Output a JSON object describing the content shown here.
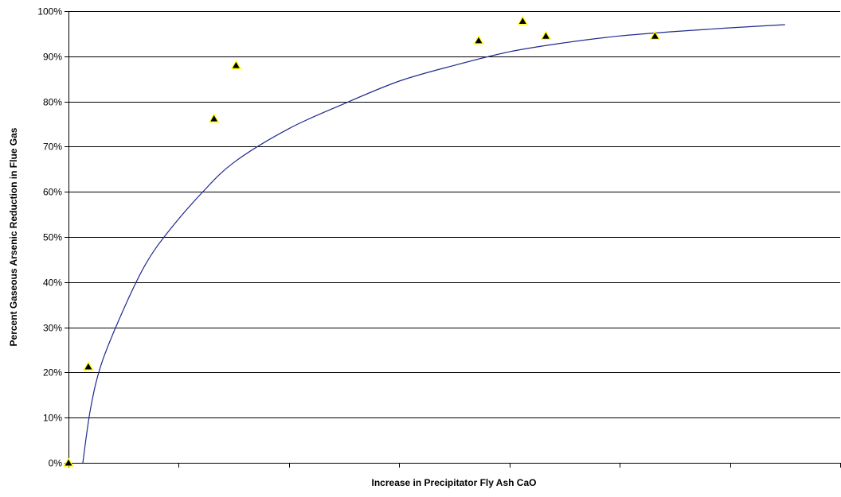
{
  "chart_data": {
    "type": "scatter",
    "title": "",
    "xlabel": "Increase in Precipitator Fly Ash CaO",
    "ylabel": "Percent Gaseous Arsenic Reduction in Flue Gas",
    "x_tick_labels_shown": false,
    "x_ticks": [
      0,
      1,
      2,
      3,
      4,
      5,
      6,
      7
    ],
    "xlim": [
      0,
      7
    ],
    "ylim": [
      0,
      100
    ],
    "y_ticks": [
      0,
      10,
      20,
      30,
      40,
      50,
      60,
      70,
      80,
      90,
      100
    ],
    "y_tick_labels": [
      "0%",
      "10%",
      "20%",
      "30%",
      "40%",
      "50%",
      "60%",
      "70%",
      "80%",
      "90%",
      "100%"
    ],
    "grid": "horizontal",
    "legend": "none",
    "series": [
      {
        "type": "scatter",
        "marker": "triangle",
        "color": "#000000",
        "marker_edge_color": "#ffff00",
        "points": [
          {
            "x": 0.0,
            "y": 0.0
          },
          {
            "x": 0.18,
            "y": 21.3
          },
          {
            "x": 1.32,
            "y": 76.2
          },
          {
            "x": 1.52,
            "y": 88.0
          },
          {
            "x": 3.72,
            "y": 93.5
          },
          {
            "x": 4.12,
            "y": 97.8
          },
          {
            "x": 4.33,
            "y": 94.5
          },
          {
            "x": 5.32,
            "y": 94.5
          }
        ]
      },
      {
        "type": "line",
        "color": "#1f2a8c",
        "points": [
          {
            "x": 0.13,
            "y": 0.0
          },
          {
            "x": 0.2,
            "y": 12.0
          },
          {
            "x": 0.3,
            "y": 22.0
          },
          {
            "x": 0.5,
            "y": 34.0
          },
          {
            "x": 0.7,
            "y": 44.0
          },
          {
            "x": 0.9,
            "y": 51.0
          },
          {
            "x": 1.2,
            "y": 59.5
          },
          {
            "x": 1.5,
            "y": 66.5
          },
          {
            "x": 2.0,
            "y": 74.0
          },
          {
            "x": 2.5,
            "y": 79.5
          },
          {
            "x": 3.0,
            "y": 84.5
          },
          {
            "x": 3.5,
            "y": 88.0
          },
          {
            "x": 4.0,
            "y": 91.0
          },
          {
            "x": 4.5,
            "y": 93.0
          },
          {
            "x": 5.0,
            "y": 94.5
          },
          {
            "x": 5.5,
            "y": 95.5
          },
          {
            "x": 6.0,
            "y": 96.3
          },
          {
            "x": 6.5,
            "y": 97.0
          }
        ]
      }
    ]
  }
}
